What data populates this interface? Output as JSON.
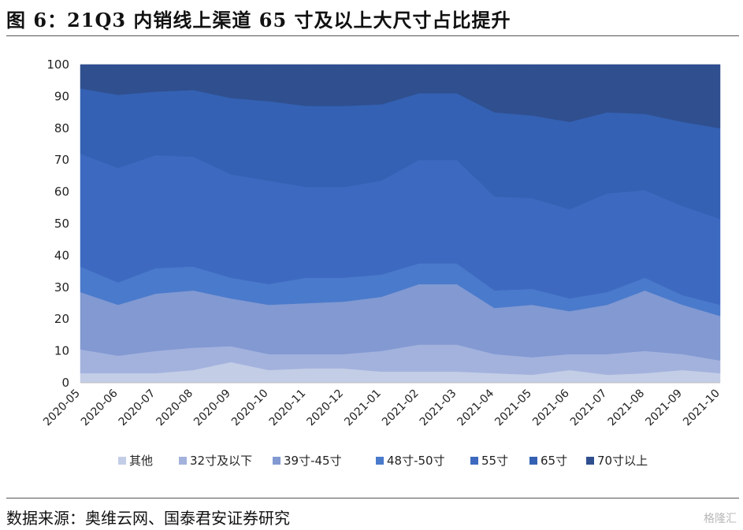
{
  "figure": {
    "title": "图 6：21Q3 内销线上渠道 65 寸及以上大尺寸占比提升",
    "source": "数据来源：奥维云网、国泰君安证券研究",
    "watermark": "格隆汇"
  },
  "chart_data": {
    "type": "area",
    "stacked": true,
    "ylim": [
      0,
      100
    ],
    "yticks": [
      0,
      10,
      20,
      30,
      40,
      50,
      60,
      70,
      80,
      90,
      100
    ],
    "categories": [
      "2020-05",
      "2020-06",
      "2020-07",
      "2020-08",
      "2020-09",
      "2020-10",
      "2020-11",
      "2020-12",
      "2021-01",
      "2021-02",
      "2021-03",
      "2021-04",
      "2021-05",
      "2021-06",
      "2021-07",
      "2021-08",
      "2021-09",
      "2021-10"
    ],
    "legend_position": "bottom",
    "series": [
      {
        "name": "其他",
        "color": "#c3cde6",
        "values": [
          3,
          3,
          3,
          4,
          6.5,
          4,
          4.5,
          4.5,
          3.5,
          3.5,
          3.5,
          3,
          2.5,
          4,
          2.5,
          3,
          4,
          3
        ]
      },
      {
        "name": "32寸及以下",
        "color": "#a3b2dd",
        "values": [
          7.5,
          5.5,
          7,
          7,
          5,
          5,
          4.5,
          4.5,
          6.5,
          8.5,
          8.5,
          6,
          5.5,
          5,
          6.5,
          7,
          5,
          4
        ]
      },
      {
        "name": "39寸-45寸",
        "color": "#8299d2",
        "values": [
          18,
          16,
          18,
          18,
          15,
          15.5,
          16,
          16.5,
          17,
          19,
          19,
          14.5,
          16.5,
          13.5,
          15.5,
          19,
          15.5,
          14
        ]
      },
      {
        "name": "48寸-50寸",
        "color": "#4a7acb",
        "values": [
          8,
          7,
          8,
          7.5,
          6.5,
          6.5,
          8,
          7.5,
          7,
          6.5,
          6.5,
          5.5,
          5,
          4,
          4,
          4,
          3,
          3.5
        ]
      },
      {
        "name": "55寸",
        "color": "#3d6ac0",
        "values": [
          35.5,
          36,
          35.5,
          34.5,
          32.5,
          32.5,
          28.5,
          28.5,
          29.5,
          32.5,
          32.5,
          29.5,
          28.5,
          28,
          31,
          27.5,
          28,
          27
        ]
      },
      {
        "name": "65寸",
        "color": "#3461b3",
        "values": [
          20.5,
          23,
          20,
          21,
          24,
          25,
          25.5,
          25.5,
          24,
          21,
          21,
          26.5,
          26,
          27.5,
          25.5,
          24,
          26.5,
          28.5
        ]
      },
      {
        "name": "70寸以上",
        "color": "#2f4f8f",
        "values": [
          7.5,
          9.5,
          8.5,
          8,
          10.5,
          11.5,
          13,
          13,
          12.5,
          9,
          9,
          15,
          16,
          18,
          15,
          15.5,
          18,
          20
        ]
      }
    ]
  }
}
